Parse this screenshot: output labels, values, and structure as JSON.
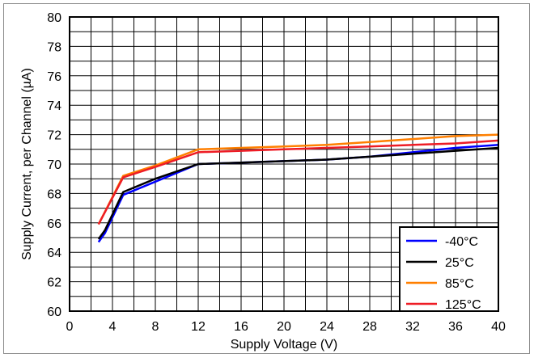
{
  "chart_data": {
    "type": "line",
    "xlabel": "Supply Voltage (V)",
    "ylabel": "Supply Current, per Channel (µA)",
    "xlim": [
      0,
      40
    ],
    "ylim": [
      60,
      80
    ],
    "x_ticks": [
      0,
      4,
      8,
      12,
      16,
      20,
      24,
      28,
      32,
      36,
      40
    ],
    "y_ticks": [
      60,
      62,
      64,
      66,
      68,
      70,
      72,
      74,
      76,
      78,
      80
    ],
    "x_minor_step": 2,
    "y_minor_step": 1,
    "grid": true,
    "legend_position": "bottom-right",
    "series": [
      {
        "name": "-40°C",
        "color": "#0000ff",
        "x": [
          2.7,
          3.3,
          5,
          8,
          12,
          20,
          24,
          28,
          32,
          36,
          40
        ],
        "y": [
          64.7,
          65.3,
          67.9,
          68.8,
          70.0,
          70.2,
          70.3,
          70.5,
          70.8,
          71.1,
          71.3
        ]
      },
      {
        "name": "25°C",
        "color": "#000000",
        "x": [
          2.7,
          3.3,
          5,
          8,
          12,
          20,
          24,
          28,
          32,
          36,
          40
        ],
        "y": [
          64.9,
          65.5,
          68.1,
          69.0,
          70.0,
          70.2,
          70.3,
          70.5,
          70.7,
          70.9,
          71.1
        ]
      },
      {
        "name": "85°C",
        "color": "#ff7f00",
        "x": [
          2.7,
          5,
          8,
          12,
          16,
          20,
          24,
          28,
          32,
          36,
          40
        ],
        "y": [
          65.9,
          69.2,
          69.9,
          71.0,
          71.1,
          71.2,
          71.3,
          71.5,
          71.7,
          71.9,
          72.0
        ]
      },
      {
        "name": "125°C",
        "color": "#ee1c25",
        "x": [
          2.7,
          5,
          8,
          12,
          16,
          20,
          24,
          28,
          32,
          36,
          40
        ],
        "y": [
          65.9,
          69.1,
          69.8,
          70.8,
          70.9,
          71.0,
          71.1,
          71.2,
          71.3,
          71.4,
          71.6
        ]
      }
    ]
  }
}
